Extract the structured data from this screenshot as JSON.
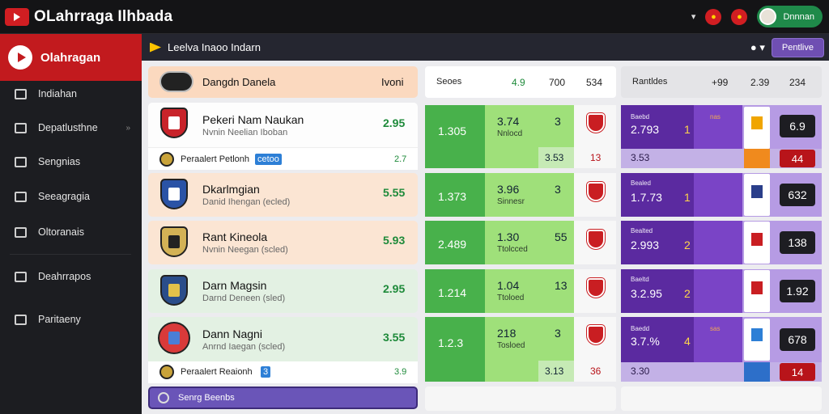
{
  "app": {
    "title": "OLahrraga Ilhbada"
  },
  "topbar": {
    "user_name": "Dnnnan"
  },
  "sidebar": {
    "brand": "Olahragan",
    "items": [
      {
        "label": "Indiahan"
      },
      {
        "label": "Depatlusthne"
      },
      {
        "label": "Sengnias"
      },
      {
        "label": "Seeagragia"
      },
      {
        "label": "Oltoranais"
      },
      {
        "label": "Deahrrapos"
      },
      {
        "label": "Paritaeny"
      }
    ]
  },
  "subbar": {
    "title": "Leelva Inaoo Indarn",
    "button": "Pentlive"
  },
  "left": {
    "header": {
      "name": "Dangdn Danela",
      "right": "Ivoni"
    },
    "rows": [
      {
        "name": "Pekeri Nam Naukan",
        "sub": "Nvnin Neelian Iboban",
        "value": "2.95",
        "footer": "Peraalert Petlonh",
        "footer_tag": "cetoo",
        "footer_value": "2.7"
      },
      {
        "name": "Dkarlmgian",
        "sub": "Danid Ihengan (ecled)",
        "value": "5.55"
      },
      {
        "name": "Rant Kineola",
        "sub": "Nvnin Neegan (scled)",
        "value": "5.93"
      },
      {
        "name": "Darn Magsin",
        "sub": "Darnd Deneen (sled)",
        "value": "2.95"
      },
      {
        "name": "Dann Nagni",
        "sub": "Anrnd Iaegan (scled)",
        "value": "3.55",
        "footer": "Peraalert Reaionh",
        "footer_tag": "3",
        "footer_value": "3.9"
      }
    ],
    "bottom_bar": "Senrg Beenbs"
  },
  "green": {
    "header": {
      "label": "Seoes",
      "a": "4.9",
      "b": "700",
      "c": "534"
    },
    "rows": [
      {
        "a": "1.305",
        "b": "3.74",
        "bsub": "Nnlocd",
        "c": "3",
        "foot1": "3.53",
        "foot2": "13"
      },
      {
        "a": "1.373",
        "b": "3.96",
        "bsub": "Sinnesr",
        "c": "3"
      },
      {
        "a": "2.489",
        "b": "1.30",
        "bsub": "Ttolcced",
        "c": "55"
      },
      {
        "a": "1.214",
        "b": "1.04",
        "bsub": "Ttoloed",
        "c": "13"
      },
      {
        "a": "1.2.3",
        "b": "218",
        "bsub": "Tosloed",
        "c": "3",
        "foot1": "3.13",
        "foot2": "36"
      }
    ]
  },
  "purple": {
    "header": {
      "label": "Rantldes",
      "a": "+99",
      "b": "2.39",
      "c": "234"
    },
    "rows": [
      {
        "top": "Baebd",
        "main": "2.793",
        "rank": "1",
        "badge": "nas",
        "odd": "6.9",
        "foot_main": "3.53",
        "foot_odd": "44"
      },
      {
        "top": "Bealed",
        "main": "1.7.73",
        "rank": "1",
        "odd": "632"
      },
      {
        "top": "Bealted",
        "main": "2.993",
        "rank": "2",
        "odd": "138"
      },
      {
        "top": "Baeltd",
        "main": "3.2.95",
        "rank": "2",
        "odd": "1.92"
      },
      {
        "top": "Baedd",
        "main": "3.7.%",
        "rank": "4",
        "badge": "sas",
        "odd": "678",
        "foot_main": "3.30",
        "foot_odd": "14"
      }
    ]
  },
  "colors": {
    "green_dark": "#48b14b",
    "green_light": "#9fe07a",
    "purple": "#5b2aa0",
    "red": "#c21a1e"
  }
}
